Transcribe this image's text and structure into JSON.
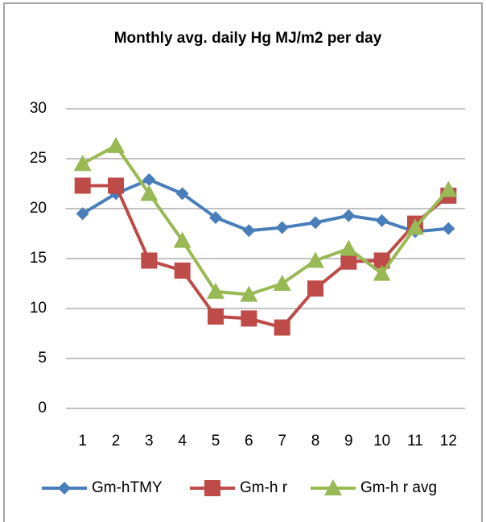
{
  "chart_data": {
    "type": "line",
    "title": "Monthly avg. daily Hg MJ/m2 per day",
    "categories": [
      "1",
      "2",
      "3",
      "4",
      "5",
      "6",
      "7",
      "8",
      "9",
      "10",
      "11",
      "12"
    ],
    "series": [
      {
        "name": "Gm-hTMY",
        "color": "#4a7ebb",
        "marker": "diamond",
        "values": [
          19.5,
          21.5,
          22.9,
          21.5,
          19.1,
          17.8,
          18.1,
          18.6,
          19.3,
          18.8,
          17.7,
          18.0
        ]
      },
      {
        "name": "Gm-h r",
        "color": "#be4b48",
        "marker": "square",
        "values": [
          22.3,
          22.3,
          14.8,
          13.8,
          9.2,
          9.0,
          8.1,
          12.0,
          14.7,
          14.8,
          18.5,
          21.3
        ]
      },
      {
        "name": "Gm-h r avg",
        "color": "#98b954",
        "marker": "triangle",
        "values": [
          24.5,
          26.3,
          21.5,
          16.8,
          11.7,
          11.4,
          12.5,
          14.8,
          16.0,
          13.5,
          18.1,
          21.9
        ]
      }
    ],
    "ylim": [
      0,
      30
    ],
    "yticks": [
      0,
      5,
      10,
      15,
      20,
      25,
      30
    ],
    "grid": true,
    "legend": "bottom"
  }
}
